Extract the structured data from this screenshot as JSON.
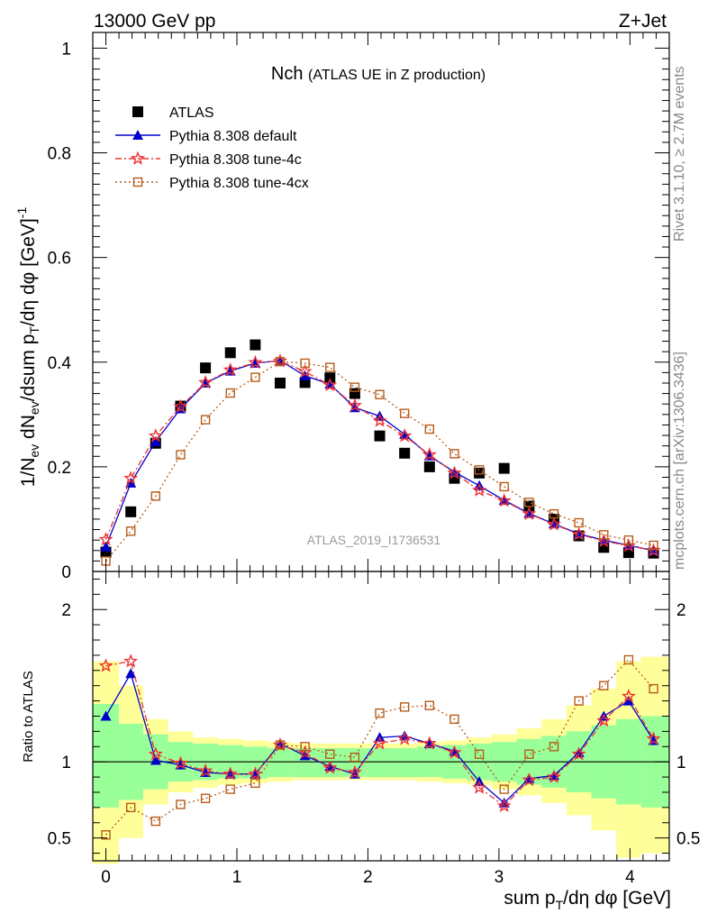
{
  "header": {
    "left": "13000 GeV pp",
    "right": "Z+Jet"
  },
  "side_labels": {
    "rivet": "Rivet 3.1.10, ≥ 2.7M events",
    "mcplots": "mcplots.cern.ch [arXiv:1306.3436]"
  },
  "chart_data": {
    "type": "line",
    "title": "Nch",
    "subtitle": "(ATLAS UE in Z production)",
    "analysis_tag": "ATLAS_2019_I1736531",
    "xlabel": "sum p_T/dη dφ [GeV]",
    "ylabel_main": "1/N_ev dN_ev/dsum p_T/dη dφ [GeV]^-1",
    "ylabel_ratio": "Ratio to ATLAS",
    "xlim": [
      -0.1,
      4.3
    ],
    "ylim_main": [
      0,
      1.03
    ],
    "ylim_ratio": [
      0.35,
      2.25
    ],
    "x_ticks": [
      "0",
      "1",
      "2",
      "3",
      "4"
    ],
    "y_ticks_main": [
      "0",
      "0.2",
      "0.4",
      "0.6",
      "0.8",
      "1"
    ],
    "y_ticks_ratio": [
      "0.5",
      "1",
      "2"
    ],
    "legend_position": "top-left",
    "x": [
      0.0,
      0.19,
      0.38,
      0.57,
      0.76,
      0.95,
      1.14,
      1.33,
      1.52,
      1.71,
      1.9,
      2.09,
      2.28,
      2.47,
      2.66,
      2.85,
      3.04,
      3.23,
      3.42,
      3.61,
      3.8,
      3.99,
      4.18
    ],
    "series": [
      {
        "name": "ATLAS",
        "color": "#000000",
        "marker": "square",
        "values": [
          0.037,
          0.114,
          0.245,
          0.316,
          0.389,
          0.418,
          0.433,
          0.36,
          0.361,
          0.37,
          0.34,
          0.259,
          0.226,
          0.2,
          0.178,
          0.188,
          0.197,
          0.125,
          0.1,
          0.068,
          0.046,
          0.036,
          0.035
        ]
      },
      {
        "name": "Pythia 8.308 default",
        "color": "#0000cc",
        "marker": "triangle",
        "values": [
          0.047,
          0.169,
          0.248,
          0.311,
          0.36,
          0.383,
          0.398,
          0.403,
          0.374,
          0.358,
          0.313,
          0.297,
          0.262,
          0.221,
          0.19,
          0.164,
          0.136,
          0.111,
          0.091,
          0.072,
          0.06,
          0.05,
          0.04
        ]
      },
      {
        "name": "Pythia 8.308 tune-4c",
        "color": "#ee3333",
        "marker": "star",
        "values": [
          0.061,
          0.178,
          0.259,
          0.315,
          0.361,
          0.385,
          0.399,
          0.402,
          0.382,
          0.356,
          0.317,
          0.288,
          0.259,
          0.223,
          0.188,
          0.155,
          0.135,
          0.11,
          0.09,
          0.071,
          0.058,
          0.049,
          0.04
        ]
      },
      {
        "name": "Pythia 8.308 tune-4cx",
        "color": "#b85c1a",
        "marker": "open-square",
        "values": [
          0.02,
          0.077,
          0.144,
          0.223,
          0.29,
          0.341,
          0.371,
          0.401,
          0.398,
          0.39,
          0.352,
          0.338,
          0.302,
          0.272,
          0.225,
          0.194,
          0.162,
          0.132,
          0.11,
          0.093,
          0.07,
          0.06,
          0.05
        ]
      }
    ],
    "ratio_series": [
      {
        "name": "Pythia 8.308 default",
        "values": [
          1.3,
          1.58,
          1.01,
          0.98,
          0.93,
          0.92,
          0.92,
          1.12,
          1.04,
          0.97,
          0.92,
          1.16,
          1.17,
          1.12,
          1.07,
          0.87,
          0.73,
          0.89,
          0.91,
          1.06,
          1.3,
          1.4,
          1.14
        ]
      },
      {
        "name": "Pythia 8.308 tune-4c",
        "values": [
          1.63,
          1.66,
          1.05,
          0.99,
          0.94,
          0.92,
          0.92,
          1.11,
          1.06,
          0.96,
          0.93,
          1.12,
          1.15,
          1.12,
          1.06,
          0.83,
          0.71,
          0.88,
          0.9,
          1.05,
          1.27,
          1.43,
          1.15
        ]
      },
      {
        "name": "Pythia 8.308 tune-4cx",
        "values": [
          0.52,
          0.7,
          0.61,
          0.72,
          0.76,
          0.82,
          0.86,
          1.11,
          1.1,
          1.05,
          1.03,
          1.32,
          1.36,
          1.37,
          1.28,
          1.05,
          0.82,
          1.05,
          1.1,
          1.4,
          1.5,
          1.67,
          1.48
        ]
      }
    ],
    "ratio_band_edges": [
      -0.1,
      0.1,
      0.285,
      0.475,
      0.665,
      0.855,
      1.045,
      1.235,
      1.425,
      1.615,
      1.805,
      1.995,
      2.185,
      2.375,
      2.565,
      2.755,
      2.945,
      3.135,
      3.325,
      3.515,
      3.705,
      3.895,
      4.085,
      4.3
    ],
    "ratio_band_green": [
      [
        0.7,
        1.38
      ],
      [
        0.75,
        1.25
      ],
      [
        0.82,
        1.18
      ],
      [
        0.87,
        1.13
      ],
      [
        0.88,
        1.12
      ],
      [
        0.89,
        1.11
      ],
      [
        0.89,
        1.1
      ],
      [
        0.9,
        1.09
      ],
      [
        0.9,
        1.09
      ],
      [
        0.9,
        1.09
      ],
      [
        0.9,
        1.09
      ],
      [
        0.9,
        1.09
      ],
      [
        0.9,
        1.09
      ],
      [
        0.9,
        1.1
      ],
      [
        0.89,
        1.11
      ],
      [
        0.88,
        1.12
      ],
      [
        0.87,
        1.13
      ],
      [
        0.85,
        1.15
      ],
      [
        0.83,
        1.17
      ],
      [
        0.8,
        1.2
      ],
      [
        0.76,
        1.24
      ],
      [
        0.72,
        1.28
      ],
      [
        0.7,
        1.3
      ]
    ],
    "ratio_band_yellow": [
      [
        0.33,
        1.66
      ],
      [
        0.5,
        1.5
      ],
      [
        0.72,
        1.28
      ],
      [
        0.8,
        1.2
      ],
      [
        0.83,
        1.16
      ],
      [
        0.85,
        1.15
      ],
      [
        0.86,
        1.14
      ],
      [
        0.87,
        1.13
      ],
      [
        0.88,
        1.12
      ],
      [
        0.88,
        1.12
      ],
      [
        0.88,
        1.12
      ],
      [
        0.88,
        1.12
      ],
      [
        0.88,
        1.12
      ],
      [
        0.87,
        1.13
      ],
      [
        0.86,
        1.14
      ],
      [
        0.85,
        1.16
      ],
      [
        0.82,
        1.18
      ],
      [
        0.78,
        1.22
      ],
      [
        0.73,
        1.28
      ],
      [
        0.65,
        1.37
      ],
      [
        0.55,
        1.48
      ],
      [
        0.37,
        1.66
      ],
      [
        0.4,
        1.69
      ]
    ]
  }
}
